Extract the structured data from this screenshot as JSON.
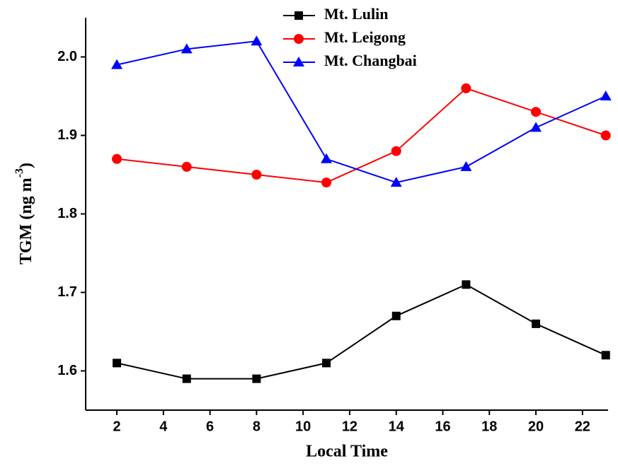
{
  "chart_data": {
    "type": "line",
    "xlabel": "Local Time",
    "ylabel": {
      "main": "TGM (ng m",
      "sup": "-3",
      "end": ")"
    },
    "x": [
      2,
      5,
      8,
      11,
      14,
      17,
      20,
      23
    ],
    "series": [
      {
        "name": "Mt. Lulin",
        "color": "#000000",
        "marker": "square",
        "values": [
          1.61,
          1.59,
          1.59,
          1.61,
          1.67,
          1.71,
          1.66,
          1.62
        ]
      },
      {
        "name": "Mt. Leigong",
        "color": "#ff0000",
        "marker": "circle",
        "values": [
          1.87,
          1.86,
          1.85,
          1.84,
          1.88,
          1.96,
          1.93,
          1.9
        ]
      },
      {
        "name": "Mt. Changbai",
        "color": "#0000ff",
        "marker": "triangle",
        "values": [
          1.99,
          2.01,
          2.02,
          1.87,
          1.84,
          1.86,
          1.91,
          1.95
        ]
      }
    ],
    "xlim": [
      0.66,
      23.1
    ],
    "xticks": [
      2,
      4,
      6,
      8,
      10,
      12,
      14,
      16,
      18,
      20,
      22
    ],
    "ylim": [
      1.55,
      2.05
    ],
    "yticks": [
      1.6,
      1.7,
      1.8,
      1.9,
      {
        "value": 2.0,
        "label": "2.0"
      }
    ],
    "legend": "top"
  }
}
